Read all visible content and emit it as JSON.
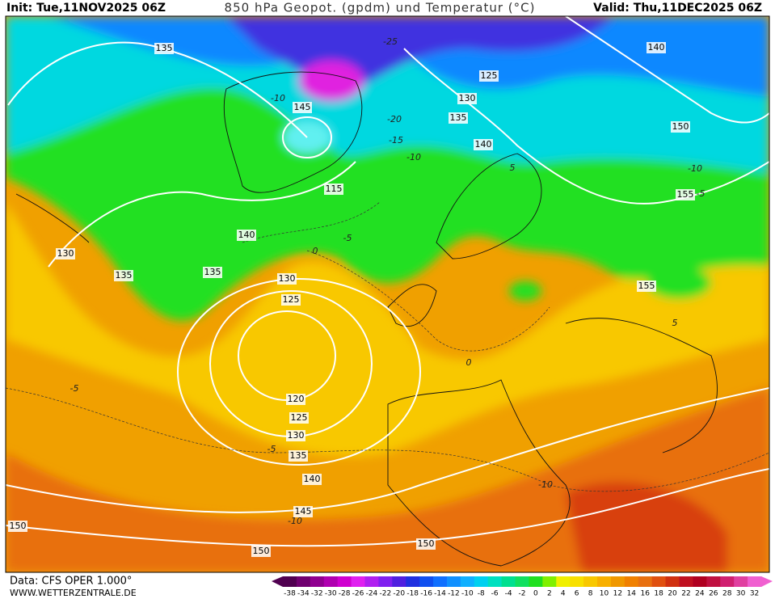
{
  "header": {
    "init": "Init: Tue,11NOV2025 06Z",
    "title": "850 hPa Geopot. (gpdm) und Temperatur (°C)",
    "valid": "Valid: Thu,11DEC2025 06Z"
  },
  "footer": {
    "data": "Data: CFS OPER 1.000°",
    "website": "WWW.WETTERZENTRALE.DE"
  },
  "colorbar": {
    "labels": [
      -38,
      -34,
      -32,
      -30,
      -28,
      -26,
      -24,
      -22,
      -20,
      -18,
      -16,
      -14,
      -12,
      -10,
      -8,
      -6,
      -4,
      -2,
      0,
      2,
      4,
      6,
      8,
      10,
      12,
      14,
      16,
      18,
      20,
      22,
      24,
      26,
      28,
      30,
      32
    ],
    "colors": [
      "#500050",
      "#700070",
      "#900090",
      "#b000b0",
      "#d000d0",
      "#e020f0",
      "#b020f0",
      "#8020f0",
      "#5020e0",
      "#2030e0",
      "#1050f0",
      "#1070ff",
      "#1090ff",
      "#10b0ff",
      "#00d0f0",
      "#00e0c0",
      "#00e090",
      "#10e060",
      "#20e020",
      "#80f000",
      "#f0f000",
      "#f8e000",
      "#f8c800",
      "#f8b000",
      "#f09800",
      "#f08000",
      "#e87010",
      "#e05010",
      "#d03010",
      "#c01020",
      "#b00020",
      "#c01040",
      "#d02070",
      "#e040a0",
      "#f060d0"
    ]
  },
  "map": {
    "geopotential_labels": [
      135,
      145,
      125,
      130,
      135,
      140,
      140,
      150,
      155,
      115,
      140,
      130,
      135,
      135,
      130,
      125,
      120,
      125,
      130,
      135,
      140,
      145,
      150,
      150,
      150,
      155
    ],
    "temperature_labels": [
      -25,
      -20,
      -15,
      -10,
      -10,
      -5,
      0,
      5,
      0,
      -5,
      -5,
      -10,
      -10,
      -10,
      -5,
      5
    ]
  }
}
